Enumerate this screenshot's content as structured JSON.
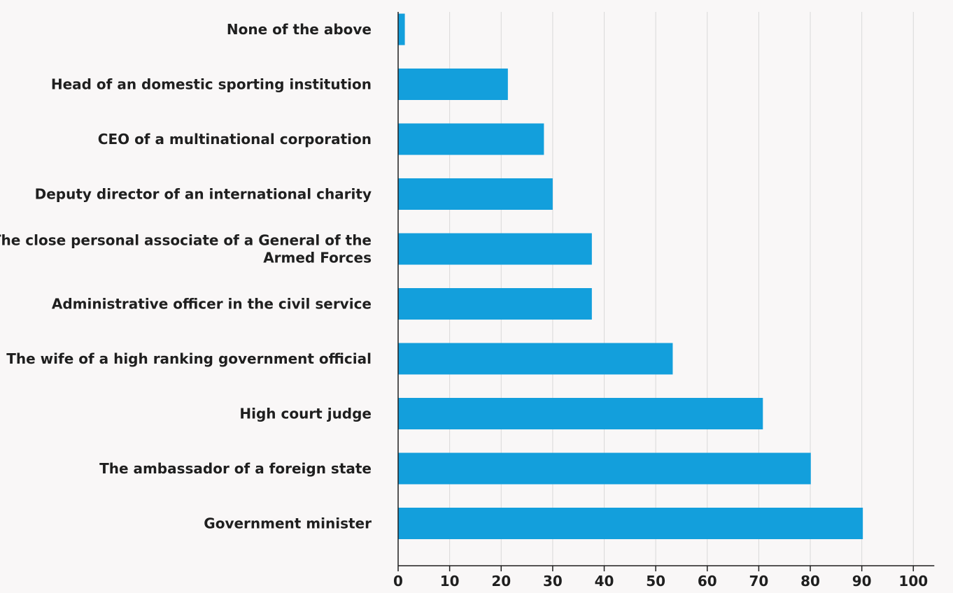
{
  "chart_data": {
    "type": "bar",
    "orientation": "horizontal",
    "title": "",
    "xlabel": "",
    "ylabel": "",
    "xlim": [
      0,
      100
    ],
    "x_ticks": [
      "0",
      "10",
      "20",
      "30",
      "40",
      "50",
      "60",
      "70",
      "80",
      "90",
      "100"
    ],
    "grid": "vertical",
    "bar_color": "#139fdc",
    "categories": [
      [
        "None of the above"
      ],
      [
        "Head of an domestic sporting institution"
      ],
      [
        "CEO of a multinational corporation"
      ],
      [
        "Deputy director of an international charity"
      ],
      [
        "The close personal associate of a General of the",
        "Armed Forces"
      ],
      [
        "Administrative officer in the civil service"
      ],
      [
        "The wife of a high ranking government official"
      ],
      [
        "High court judge"
      ],
      [
        "The ambassador of a foreign state"
      ],
      [
        "Government minister"
      ]
    ],
    "values": [
      1.3,
      21.3,
      28.3,
      30.0,
      37.6,
      37.6,
      53.3,
      70.8,
      80.1,
      90.2
    ]
  }
}
